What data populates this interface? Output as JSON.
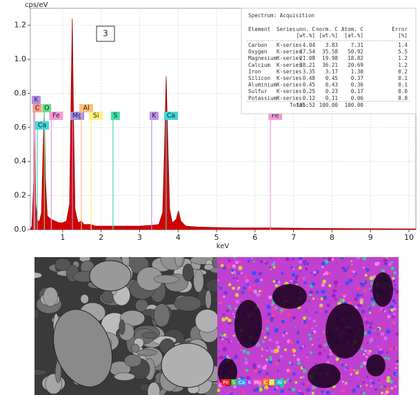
{
  "chart_data": {
    "type": "spectrum",
    "y_label": "cps/eV",
    "x_label": "keV",
    "xlim": [
      0.16,
      10.18
    ],
    "ylim": [
      0,
      1.3
    ],
    "xticks": [
      1,
      2,
      3,
      4,
      5,
      6,
      7,
      8,
      9,
      10
    ],
    "yticks": [
      {
        "value": 0,
        "label": "0.0"
      },
      0.2,
      0.4,
      0.6,
      0.8,
      {
        "value": 1,
        "label": "1.0"
      },
      1.2
    ],
    "grid": true,
    "color": "#d40000",
    "x": [
      0.16,
      0.2,
      0.25,
      0.28,
      0.3,
      0.35,
      0.4,
      0.45,
      0.5,
      0.525,
      0.55,
      0.6,
      0.7,
      0.8,
      0.9,
      1.0,
      1.1,
      1.18,
      1.22,
      1.25,
      1.28,
      1.32,
      1.4,
      1.49,
      1.55,
      1.74,
      1.85,
      2.0,
      2.3,
      2.6,
      3.0,
      3.31,
      3.5,
      3.6,
      3.65,
      3.69,
      3.73,
      3.78,
      3.85,
      3.95,
      4.01,
      4.07,
      4.2,
      4.5,
      5.0,
      5.5,
      6.0,
      6.38,
      6.4,
      6.42,
      7.0,
      8.0,
      9.0,
      10.0,
      10.18
    ],
    "values": [
      0.0,
      0.02,
      0.3,
      0.6,
      0.15,
      0.05,
      0.05,
      0.1,
      0.55,
      0.7,
      0.3,
      0.08,
      0.06,
      0.05,
      0.04,
      0.04,
      0.05,
      0.15,
      0.8,
      1.24,
      0.7,
      0.12,
      0.04,
      0.05,
      0.03,
      0.03,
      0.02,
      0.02,
      0.02,
      0.02,
      0.02,
      0.025,
      0.03,
      0.1,
      0.5,
      0.9,
      0.55,
      0.12,
      0.04,
      0.06,
      0.11,
      0.05,
      0.02,
      0.015,
      0.012,
      0.01,
      0.01,
      0.01,
      0.015,
      0.01,
      0.008,
      0.006,
      0.005,
      0.004,
      0.004
    ],
    "markers": [
      {
        "label": "K",
        "x": 0.25,
        "color": "#b98cf0"
      },
      {
        "label": "C",
        "x": 0.277,
        "color": "#ff9a8a"
      },
      {
        "label": "O",
        "x": 0.525,
        "color": "#66e08a"
      },
      {
        "label": "Fe",
        "x": 0.705,
        "color": "#f59ad8"
      },
      {
        "label": "Mg",
        "x": 1.254,
        "color": "#a78cf0"
      },
      {
        "label": "Al",
        "x": 1.487,
        "color": "#ffc080"
      },
      {
        "label": "Si",
        "x": 1.74,
        "color": "#fff080"
      },
      {
        "label": "S",
        "x": 2.307,
        "color": "#40e0b0"
      },
      {
        "label": "K",
        "x": 3.313,
        "color": "#c090f0"
      },
      {
        "label": "Ca",
        "x": 3.69,
        "color": "#40d8d8"
      },
      {
        "label": "Fe",
        "x": 6.4,
        "color": "#f59ad8"
      },
      {
        "label": "Ca",
        "x": 0.341,
        "color": "#40d8d8"
      }
    ],
    "annotation": "3",
    "table": {
      "title": "Spectrum: Acquisition",
      "columns": [
        "Element",
        "Series",
        "unn. C",
        "norm. C",
        "Atom. C",
        "Error"
      ],
      "units": [
        "[wt.%]",
        "[wt.%]",
        "[at.%]",
        "[%]"
      ],
      "rows": [
        [
          "Carbon",
          "K-series",
          "4.04",
          "3.83",
          "7.31",
          "1.4"
        ],
        [
          "Oxygen",
          "K-series",
          "37.54",
          "35.58",
          "50.92",
          "5.5"
        ],
        [
          "Magnesium",
          "K-series",
          "21.08",
          "19.98",
          "18.82",
          "1.2"
        ],
        [
          "Calcium",
          "K-series",
          "38.21",
          "36.21",
          "20.69",
          "1.2"
        ],
        [
          "Iron",
          "K-series",
          "3.35",
          "3.17",
          "1.30",
          "0.2"
        ],
        [
          "Silicon",
          "K-series",
          "0.48",
          "0.45",
          "0.37",
          "0.1"
        ],
        [
          "Aluminium",
          "K-series",
          "0.45",
          "0.43",
          "0.36",
          "0.1"
        ],
        [
          "Sulfur",
          "K-series",
          "0.25",
          "0.23",
          "0.17",
          "0.0"
        ],
        [
          "Potassium",
          "K-series",
          "0.12",
          "0.11",
          "0.06",
          "0.0"
        ]
      ],
      "total_label": "Total:",
      "total": [
        "105.52",
        "100.00",
        "100.00"
      ]
    },
    "map_legend": [
      "Fe",
      "S",
      "Ca",
      "K",
      "Mg",
      "C",
      "O",
      "Al"
    ]
  }
}
